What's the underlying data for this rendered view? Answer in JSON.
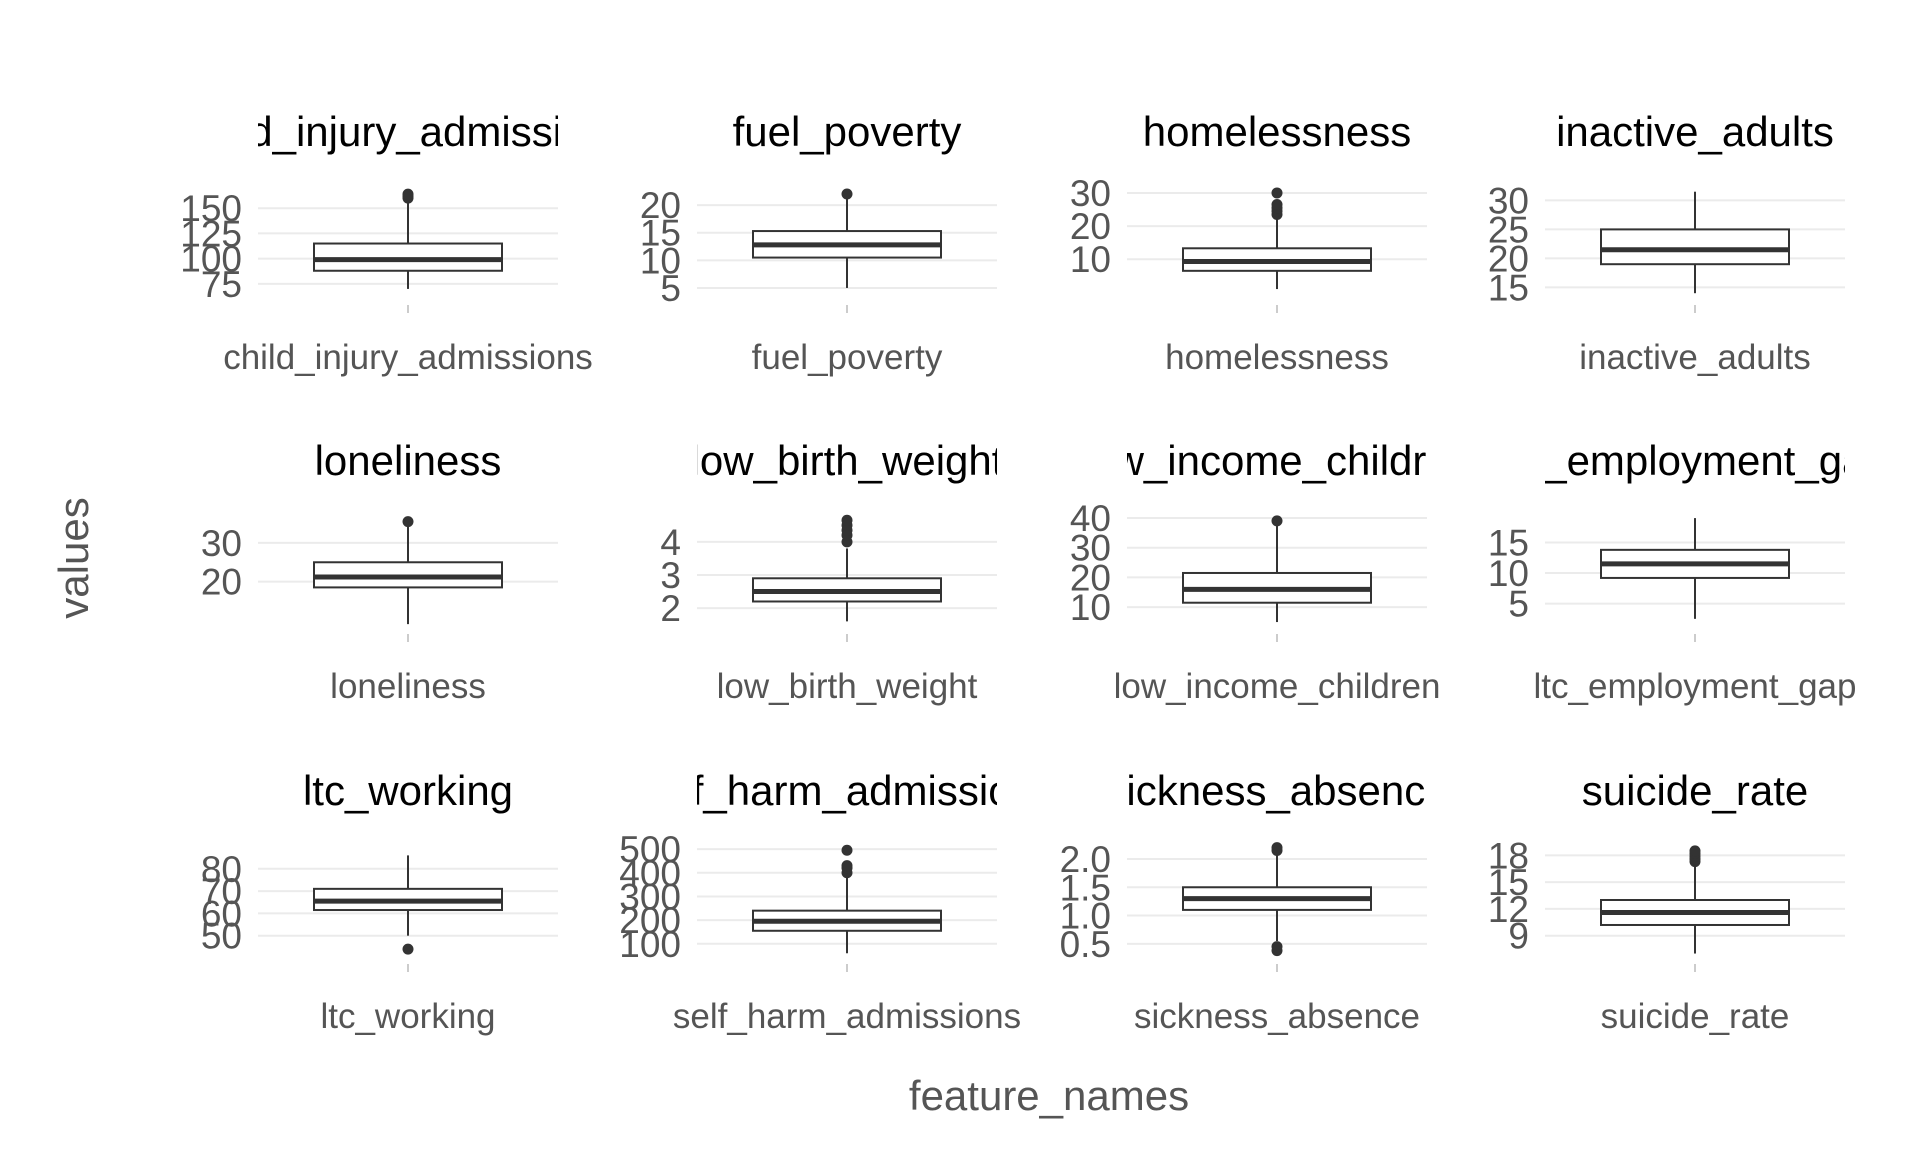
{
  "chart_data": {
    "type": "boxplot",
    "xlabel": "feature_names",
    "ylabel": "values",
    "grid": true,
    "colors": {
      "box_fill": "#ffffff",
      "box_line": "#333333",
      "grid": "#ebebeb",
      "text": "#555555",
      "strip_text": "#000000"
    },
    "panels": [
      {
        "strip": "child_injury_admissions",
        "category": "child_injury_admissions",
        "ylim": [
          60,
          175
        ],
        "ticks": [
          75,
          100,
          125,
          150
        ],
        "min": 70,
        "q1": 88,
        "median": 99,
        "q3": 115,
        "max": 158,
        "outliers": [
          160,
          162,
          164
        ]
      },
      {
        "strip": "fuel_poverty",
        "category": "fuel_poverty",
        "ylim": [
          3,
          24
        ],
        "ticks": [
          5,
          10,
          15,
          20
        ],
        "min": 5,
        "q1": 10.5,
        "median": 12.8,
        "q3": 15.3,
        "max": 22,
        "outliers": [
          22
        ]
      },
      {
        "strip": "homelessness",
        "category": "homelessness",
        "ylim": [
          -2,
          33
        ],
        "ticks": [
          10,
          20,
          30
        ],
        "min": 1,
        "q1": 6.5,
        "median": 9.3,
        "q3": 13.3,
        "max": 23,
        "outliers": [
          23.5,
          24.5,
          25.5,
          26.5,
          30
        ]
      },
      {
        "strip": "inactive_adults",
        "category": "inactive_adults",
        "ylim": [
          13,
          33
        ],
        "ticks": [
          15,
          20,
          25,
          30
        ],
        "min": 14,
        "q1": 19,
        "median": 21.5,
        "q3": 25,
        "max": 31.5,
        "outliers": []
      },
      {
        "strip": "loneliness",
        "category": "loneliness",
        "ylim": [
          8,
          38
        ],
        "ticks": [
          20,
          30
        ],
        "min": 9,
        "q1": 18.5,
        "median": 21.2,
        "q3": 25,
        "max": 35,
        "outliers": [
          35.5
        ]
      },
      {
        "strip": "low_birth_weight",
        "category": "low_birth_weight",
        "ylim": [
          1.4,
          4.9
        ],
        "ticks": [
          2,
          3,
          4
        ],
        "min": 1.6,
        "q1": 2.2,
        "median": 2.5,
        "q3": 2.9,
        "max": 3.8,
        "outliers": [
          4.0,
          4.2,
          4.35,
          4.5,
          4.65
        ]
      },
      {
        "strip": "low_income_children",
        "category": "low_income_children",
        "ylim": [
          3,
          42
        ],
        "ticks": [
          10,
          20,
          30,
          40
        ],
        "min": 5,
        "q1": 11.5,
        "median": 16,
        "q3": 21.5,
        "max": 38,
        "outliers": [
          39
        ]
      },
      {
        "strip": "ltc_employment_gap",
        "category": "ltc_employment_gap",
        "ylim": [
          1,
          20
        ],
        "ticks": [
          5,
          10,
          15
        ],
        "min": 2.5,
        "q1": 9.2,
        "median": 11.5,
        "q3": 13.8,
        "max": 19,
        "outliers": []
      },
      {
        "strip": "ltc_working",
        "category": "ltc_working",
        "ylim": [
          40,
          92
        ],
        "ticks": [
          50,
          60,
          70,
          80
        ],
        "min": 50,
        "q1": 61.5,
        "median": 65.5,
        "q3": 71,
        "max": 86,
        "outliers": [
          44
        ]
      },
      {
        "strip": "self_harm_admissions",
        "category": "self_harm_admissions",
        "ylim": [
          40,
          530
        ],
        "ticks": [
          100,
          200,
          300,
          400,
          500
        ],
        "min": 60,
        "q1": 155,
        "median": 195,
        "q3": 240,
        "max": 380,
        "outliers": [
          400,
          420,
          430,
          495
        ]
      },
      {
        "strip": "sickness_absence",
        "category": "sickness_absence",
        "ylim": [
          0.25,
          2.3
        ],
        "ticks": [
          0.5,
          1.0,
          1.5,
          2.0
        ],
        "labels": [
          "0.5",
          "1.0",
          "1.5",
          "2.0"
        ],
        "min": 0.55,
        "q1": 1.1,
        "median": 1.3,
        "q3": 1.5,
        "max": 2.1,
        "outliers": [
          0.38,
          0.45,
          2.15,
          2.2
        ]
      },
      {
        "strip": "suicide_rate",
        "category": "suicide_rate",
        "ylim": [
          6.5,
          19.5
        ],
        "ticks": [
          9,
          12,
          15,
          18
        ],
        "min": 7,
        "q1": 10.2,
        "median": 11.6,
        "q3": 13,
        "max": 17,
        "outliers": [
          17.3,
          17.6,
          17.9,
          18.2,
          18.5
        ]
      }
    ]
  }
}
